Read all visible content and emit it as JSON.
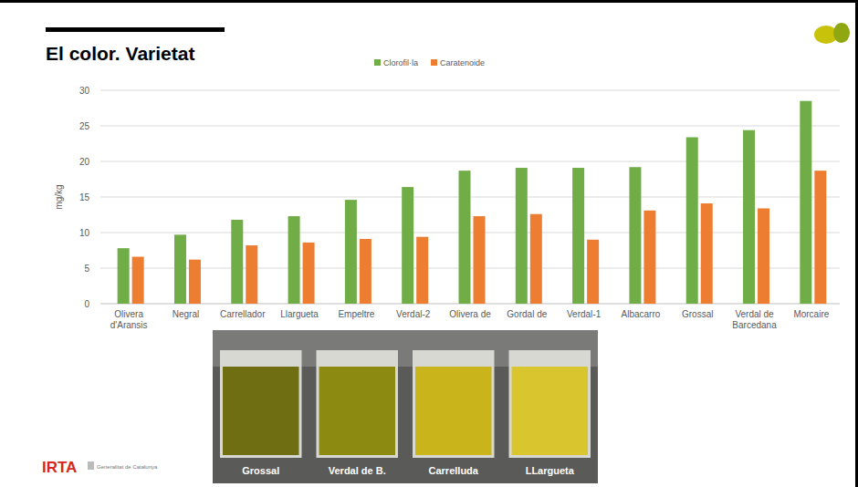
{
  "chart_data": {
    "type": "bar",
    "title": "El color. Varietat",
    "categories": [
      "Olivera d'Aransis",
      "Negral",
      "Carrellador",
      "Llargueta",
      "Empeltre",
      "Verdal-2",
      "Olivera de",
      "Gordal de",
      "Verdal-1",
      "Albacarro",
      "Grossal",
      "Verdal de Barcedana",
      "Morcaire"
    ],
    "series": [
      {
        "name": "Clorofil·la",
        "color": "#70ad47",
        "values": [
          7.8,
          9.7,
          11.8,
          12.3,
          14.6,
          16.4,
          18.7,
          19.1,
          19.1,
          19.2,
          23.4,
          24.4,
          28.5
        ]
      },
      {
        "name": "Caratenoide",
        "color": "#ed7d31",
        "values": [
          6.6,
          6.2,
          8.2,
          8.6,
          9.1,
          9.4,
          12.3,
          12.6,
          9.0,
          13.1,
          14.1,
          13.4,
          18.7
        ]
      }
    ],
    "y_label": "mg/kg",
    "ylim": [
      0,
      30
    ],
    "yticks": [
      0,
      5,
      10,
      15,
      20,
      25,
      30
    ],
    "grid": true,
    "legend": "top"
  },
  "photo": {
    "labels": [
      "Grossal",
      "Verdal de B.",
      "Carrelluda",
      "LLargueta"
    ]
  },
  "footer": {
    "logo": "IRTA",
    "institution": "Generalitat de Catalunya"
  }
}
